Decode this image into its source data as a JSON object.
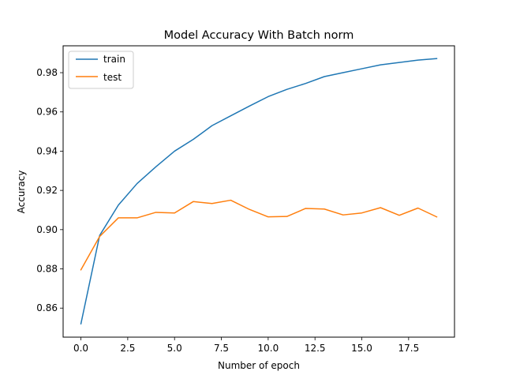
{
  "chart_data": {
    "type": "line",
    "title": "Model Accuracy With Batch norm",
    "xlabel": "Number of epoch",
    "ylabel": "Accuracy",
    "xlim": [
      -0.95,
      19.95
    ],
    "ylim": [
      0.8452,
      0.9937
    ],
    "xticks": [
      0.0,
      2.5,
      5.0,
      7.5,
      10.0,
      12.5,
      15.0,
      17.5
    ],
    "xtick_labels": [
      "0.0",
      "2.5",
      "5.0",
      "7.5",
      "10.0",
      "12.5",
      "15.0",
      "17.5"
    ],
    "yticks": [
      0.86,
      0.88,
      0.9,
      0.92,
      0.94,
      0.96,
      0.98
    ],
    "ytick_labels": [
      "0.86",
      "0.88",
      "0.90",
      "0.92",
      "0.94",
      "0.96",
      "0.98"
    ],
    "grid": false,
    "legend_position": "upper-left",
    "x": [
      0,
      1,
      2,
      3,
      4,
      5,
      6,
      7,
      8,
      9,
      10,
      11,
      12,
      13,
      14,
      15,
      16,
      17,
      18,
      19
    ],
    "series": [
      {
        "name": "train",
        "color": "#1f77b4",
        "values": [
          0.852,
          0.897,
          0.9125,
          0.9235,
          0.932,
          0.94,
          0.946,
          0.953,
          0.958,
          0.963,
          0.9678,
          0.9715,
          0.9745,
          0.978,
          0.98,
          0.982,
          0.984,
          0.9852,
          0.9864,
          0.9872
        ]
      },
      {
        "name": "test",
        "color": "#ff7f0e",
        "values": [
          0.8795,
          0.8965,
          0.906,
          0.906,
          0.9088,
          0.9085,
          0.9143,
          0.9133,
          0.915,
          0.9103,
          0.9065,
          0.9067,
          0.9108,
          0.9105,
          0.9075,
          0.9085,
          0.9112,
          0.9073,
          0.911,
          0.9065
        ]
      }
    ]
  }
}
